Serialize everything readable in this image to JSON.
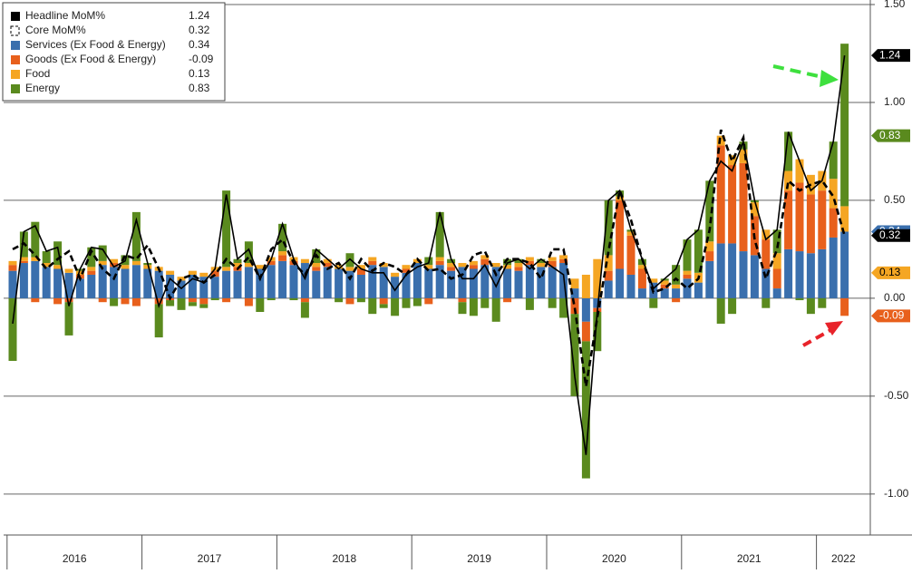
{
  "chart_data": {
    "type": "stacked_bar_line",
    "year_labels": [
      "2016",
      "2017",
      "2018",
      "2019",
      "2020",
      "2021",
      "2022"
    ],
    "ylim": [
      -1.2,
      1.5
    ],
    "yticks": [
      {
        "value": 1.5,
        "label": "1.50"
      },
      {
        "value": 1.0,
        "label": "1.00"
      },
      {
        "value": 0.5,
        "label": "0.50"
      },
      {
        "value": 0,
        "label": "0.00"
      },
      {
        "value": -0.5,
        "label": "-0.50"
      },
      {
        "value": -1.0,
        "label": "-1.00"
      }
    ],
    "grid": true,
    "legend": "top-left",
    "series": [
      {
        "name": "Headline MoM%",
        "color": "#000000",
        "kind": "line",
        "values": [
          -0.13,
          0.34,
          0.37,
          0.24,
          0.26,
          -0.04,
          0.15,
          0.26,
          0.25,
          0.16,
          0.19,
          0.4,
          0.18,
          -0.04,
          0.1,
          0.05,
          0.1,
          0.08,
          0.15,
          0.53,
          0.2,
          0.25,
          0.1,
          0.2,
          0.38,
          0.2,
          0.1,
          0.25,
          0.2,
          0.15,
          0.2,
          0.15,
          0.13,
          0.13,
          0.04,
          0.12,
          0.16,
          0.18,
          0.44,
          0.2,
          0.1,
          0.1,
          0.17,
          0.06,
          0.18,
          0.2,
          0.15,
          0.2,
          0.16,
          0.12,
          -0.4,
          -0.8,
          -0.07,
          0.5,
          0.55,
          0.35,
          0.2,
          0.05,
          0.1,
          0.15,
          0.3,
          0.35,
          0.6,
          0.7,
          0.65,
          0.8,
          0.5,
          0.3,
          0.35,
          0.85,
          0.7,
          0.55,
          0.6,
          0.8,
          1.24
        ]
      },
      {
        "name": "Core MoM%",
        "color": "#000000",
        "kind": "dashed",
        "values": [
          0.25,
          0.28,
          0.22,
          0.15,
          0.2,
          0.24,
          0.1,
          0.24,
          0.15,
          0.1,
          0.22,
          0.2,
          0.27,
          0.15,
          0.0,
          0.1,
          0.12,
          0.08,
          0.12,
          0.2,
          0.15,
          0.21,
          0.1,
          0.25,
          0.3,
          0.18,
          0.12,
          0.22,
          0.15,
          0.18,
          0.1,
          0.2,
          0.14,
          0.18,
          0.16,
          0.12,
          0.2,
          0.14,
          0.15,
          0.1,
          0.12,
          0.22,
          0.24,
          0.12,
          0.2,
          0.2,
          0.18,
          0.1,
          0.25,
          0.25,
          -0.05,
          -0.45,
          -0.1,
          0.24,
          0.55,
          0.4,
          0.2,
          0.03,
          0.05,
          0.1,
          0.05,
          0.1,
          0.35,
          0.86,
          0.7,
          0.82,
          0.3,
          0.1,
          0.25,
          0.6,
          0.55,
          0.58,
          0.6,
          0.52,
          0.32
        ]
      },
      {
        "name": "Services (Ex Food & Energy)",
        "color": "#3a6fad",
        "kind": "bar",
        "values": [
          0.14,
          0.18,
          0.19,
          0.16,
          0.15,
          0.13,
          0.1,
          0.12,
          0.17,
          0.16,
          0.15,
          0.17,
          0.15,
          0.14,
          0.12,
          0.09,
          0.12,
          0.11,
          0.11,
          0.14,
          0.14,
          0.16,
          0.15,
          0.17,
          0.19,
          0.17,
          0.18,
          0.14,
          0.16,
          0.15,
          0.14,
          0.12,
          0.17,
          0.16,
          0.11,
          0.13,
          0.18,
          0.15,
          0.17,
          0.14,
          0.16,
          0.15,
          0.17,
          0.16,
          0.15,
          0.14,
          0.17,
          0.16,
          0.16,
          0.18,
          0.05,
          -0.12,
          -0.05,
          0.09,
          0.15,
          0.12,
          0.05,
          0.08,
          0.05,
          0.05,
          0.1,
          0.08,
          0.19,
          0.28,
          0.28,
          0.24,
          0.22,
          0.15,
          0.05,
          0.25,
          0.24,
          0.23,
          0.25,
          0.31,
          0.34
        ]
      },
      {
        "name": "Goods (Ex Food & Energy)",
        "color": "#e8601c",
        "kind": "bar",
        "values": [
          0.03,
          0.01,
          -0.02,
          0.0,
          -0.03,
          -0.02,
          0.02,
          0.02,
          -0.02,
          0.02,
          -0.03,
          -0.04,
          0.0,
          -0.03,
          -0.01,
          0.0,
          -0.02,
          -0.03,
          0.03,
          -0.02,
          0.02,
          -0.04,
          0.0,
          0.02,
          0.03,
          0.02,
          -0.02,
          0.02,
          0.02,
          0.0,
          -0.03,
          0.03,
          0.02,
          -0.03,
          0.0,
          0.02,
          0.0,
          -0.03,
          0.02,
          0.02,
          -0.02,
          0.02,
          0.03,
          0.0,
          -0.02,
          0.02,
          0.02,
          0.0,
          0.03,
          0.02,
          -0.08,
          -0.1,
          -0.02,
          0.05,
          0.35,
          0.2,
          0.1,
          0.0,
          0.02,
          -0.02,
          0.02,
          0.0,
          0.05,
          0.5,
          0.4,
          0.45,
          0.2,
          0.15,
          0.1,
          0.3,
          0.35,
          0.3,
          0.3,
          0.15,
          -0.09
        ]
      },
      {
        "name": "Food",
        "color": "#f5a623",
        "kind": "bar",
        "values": [
          0.02,
          0.02,
          0.02,
          0.02,
          0.02,
          0.02,
          0.02,
          0.02,
          0.02,
          0.02,
          0.02,
          0.02,
          0.02,
          0.02,
          0.02,
          0.02,
          0.02,
          0.02,
          0.02,
          0.02,
          0.02,
          0.02,
          0.02,
          0.02,
          0.02,
          0.02,
          0.02,
          0.02,
          0.02,
          0.02,
          0.02,
          0.02,
          0.02,
          0.02,
          0.02,
          0.02,
          0.02,
          0.02,
          0.02,
          0.02,
          0.02,
          0.02,
          0.02,
          0.02,
          0.02,
          0.02,
          0.02,
          0.02,
          0.02,
          0.02,
          0.05,
          0.12,
          0.2,
          0.08,
          0.02,
          0.02,
          0.02,
          0.02,
          0.02,
          0.02,
          0.02,
          0.05,
          0.05,
          0.05,
          0.05,
          0.07,
          0.07,
          0.05,
          0.08,
          0.1,
          0.12,
          0.1,
          0.1,
          0.15,
          0.13
        ]
      },
      {
        "name": "Energy",
        "color": "#5a8a1e",
        "kind": "bar",
        "values": [
          -0.32,
          0.13,
          0.18,
          0.06,
          0.12,
          -0.17,
          0.01,
          0.1,
          0.08,
          -0.04,
          0.05,
          0.25,
          0.01,
          -0.17,
          -0.03,
          -0.06,
          -0.02,
          -0.02,
          -0.01,
          0.39,
          0.02,
          0.11,
          -0.07,
          -0.01,
          0.14,
          -0.01,
          -0.08,
          0.07,
          0.0,
          -0.02,
          0.07,
          -0.02,
          -0.08,
          -0.02,
          -0.09,
          -0.05,
          -0.04,
          0.04,
          0.23,
          0.02,
          -0.06,
          -0.09,
          -0.05,
          -0.12,
          0.03,
          0.02,
          -0.06,
          0.02,
          -0.05,
          -0.1,
          -0.42,
          -0.7,
          -0.2,
          0.28,
          0.03,
          0.01,
          0.03,
          -0.05,
          0.01,
          0.1,
          0.16,
          0.22,
          0.31,
          -0.13,
          -0.08,
          0.04,
          0.01,
          -0.05,
          0.12,
          0.2,
          -0.01,
          -0.08,
          -0.05,
          0.19,
          0.83
        ]
      }
    ]
  }
}
